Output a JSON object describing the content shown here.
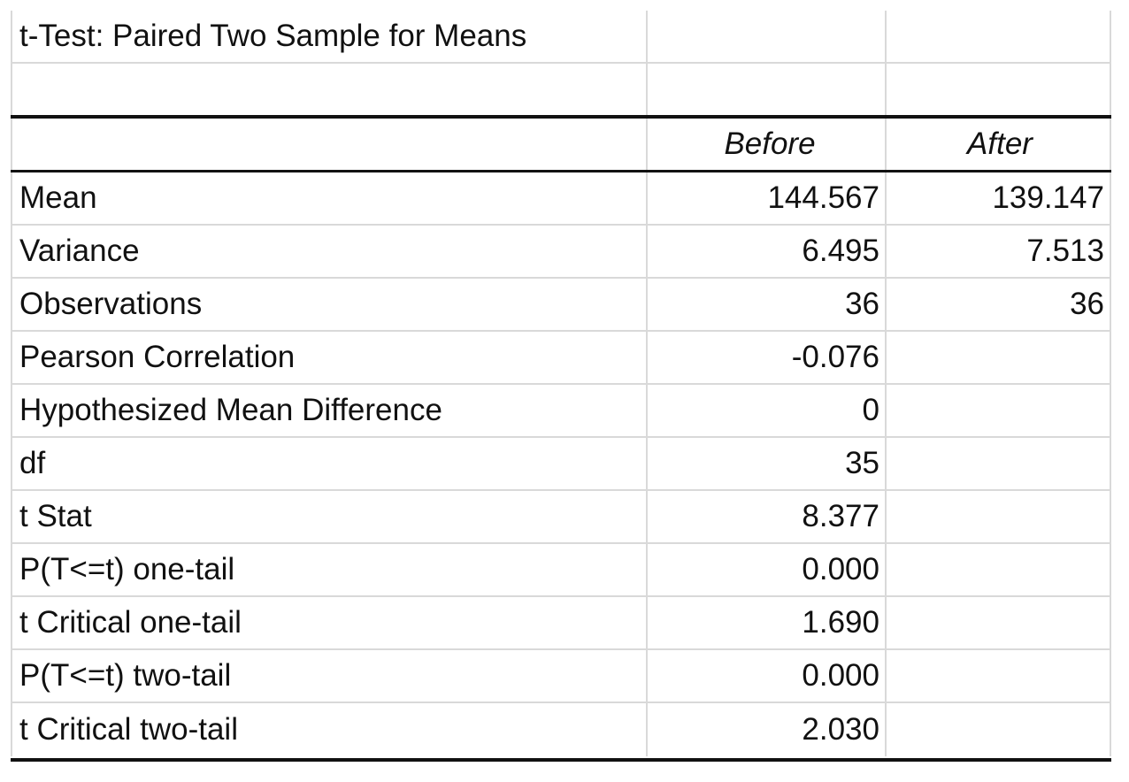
{
  "title": "t-Test: Paired Two Sample for Means",
  "columns": [
    "",
    "Before",
    "After"
  ],
  "rows": [
    {
      "label": "Mean",
      "before": "144.567",
      "after": "139.147"
    },
    {
      "label": "Variance",
      "before": "6.495",
      "after": "7.513"
    },
    {
      "label": "Observations",
      "before": "36",
      "after": "36"
    },
    {
      "label": "Pearson Correlation",
      "before": "-0.076",
      "after": ""
    },
    {
      "label": "Hypothesized Mean Difference",
      "before": "0",
      "after": ""
    },
    {
      "label": "df",
      "before": "35",
      "after": ""
    },
    {
      "label": "t Stat",
      "before": "8.377",
      "after": ""
    },
    {
      "label": "P(T<=t) one-tail",
      "before": "0.000",
      "after": ""
    },
    {
      "label": "t Critical one-tail",
      "before": "1.690",
      "after": ""
    },
    {
      "label": "P(T<=t) two-tail",
      "before": "0.000",
      "after": ""
    },
    {
      "label": "t Critical two-tail",
      "before": "2.030",
      "after": ""
    }
  ]
}
